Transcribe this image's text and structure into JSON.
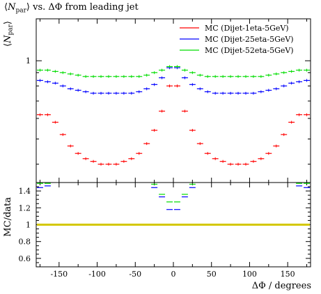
{
  "chart_data": [
    {
      "type": "line",
      "title": "⟨N_par⟩ vs. ΔΦ from leading jet",
      "ylabel": "⟨N_par⟩",
      "xlabel": "",
      "xlim": [
        -180,
        180
      ],
      "ylim": [
        0.34,
        1.45
      ],
      "yscale": "log",
      "y_tick_labels": [
        "1"
      ],
      "legend_position": "top-right",
      "colors": {
        "series1": "#ff0000",
        "series2": "#0000ff",
        "series3": "#00dd00"
      },
      "x": [
        -175,
        -165,
        -155,
        -145,
        -135,
        -125,
        -115,
        -105,
        -95,
        -85,
        -75,
        -65,
        -55,
        -45,
        -35,
        -25,
        -15,
        -5,
        5,
        15,
        25,
        35,
        45,
        55,
        65,
        75,
        85,
        95,
        105,
        115,
        125,
        135,
        145,
        155,
        165,
        175
      ],
      "series": [
        {
          "name": "MC (Dijet-1eta-5GeV)",
          "values": [
            0.62,
            0.62,
            0.58,
            0.52,
            0.47,
            0.44,
            0.42,
            0.41,
            0.4,
            0.4,
            0.4,
            0.41,
            0.42,
            0.44,
            0.48,
            0.54,
            0.64,
            0.8,
            0.8,
            0.64,
            0.54,
            0.48,
            0.44,
            0.42,
            0.41,
            0.4,
            0.4,
            0.4,
            0.41,
            0.42,
            0.44,
            0.47,
            0.52,
            0.58,
            0.62,
            0.62
          ]
        },
        {
          "name": "MC (Dijet-25eta-5GeV)",
          "values": [
            0.84,
            0.83,
            0.82,
            0.8,
            0.78,
            0.77,
            0.76,
            0.75,
            0.75,
            0.75,
            0.75,
            0.75,
            0.75,
            0.76,
            0.78,
            0.81,
            0.86,
            0.94,
            0.94,
            0.86,
            0.81,
            0.78,
            0.76,
            0.75,
            0.75,
            0.75,
            0.75,
            0.75,
            0.75,
            0.76,
            0.77,
            0.78,
            0.8,
            0.82,
            0.83,
            0.84
          ]
        },
        {
          "name": "MC (Dijet-52eta-5GeV)",
          "values": [
            0.92,
            0.92,
            0.91,
            0.9,
            0.89,
            0.88,
            0.87,
            0.87,
            0.87,
            0.87,
            0.87,
            0.87,
            0.87,
            0.87,
            0.88,
            0.9,
            0.92,
            0.95,
            0.95,
            0.92,
            0.9,
            0.88,
            0.87,
            0.87,
            0.87,
            0.87,
            0.87,
            0.87,
            0.87,
            0.87,
            0.88,
            0.89,
            0.9,
            0.91,
            0.92,
            0.92
          ]
        }
      ]
    },
    {
      "type": "line",
      "title": "",
      "ylabel": "MC/data",
      "xlabel": "ΔΦ / degrees",
      "xlim": [
        -180,
        180
      ],
      "ylim": [
        0.5,
        1.5
      ],
      "x_ticks": [
        -150,
        -100,
        -50,
        0,
        50,
        100,
        150
      ],
      "x_tick_labels": [
        "-150",
        "-100",
        "-50",
        "0",
        "50",
        "100",
        "150"
      ],
      "y_ticks": [
        0.6,
        0.8,
        1,
        1.2,
        1.4
      ],
      "y_tick_labels": [
        "0.6",
        "0.8",
        "1",
        "1.2",
        "1.4"
      ],
      "reference_band": {
        "value": 1.0,
        "color": "#d4c800"
      },
      "x": [
        -175,
        -165,
        -25,
        -15,
        -5,
        5,
        15,
        25,
        165,
        175
      ],
      "series": [
        {
          "name": "MC (Dijet-25eta-5GeV)",
          "values": [
            1.44,
            1.46,
            1.44,
            1.33,
            1.18,
            1.18,
            1.33,
            1.44,
            1.46,
            1.44
          ]
        },
        {
          "name": "MC (Dijet-52eta-5GeV)",
          "values": [
            1.49,
            1.49,
            1.48,
            1.36,
            1.27,
            1.27,
            1.36,
            1.48,
            1.49,
            1.49
          ]
        }
      ]
    }
  ]
}
